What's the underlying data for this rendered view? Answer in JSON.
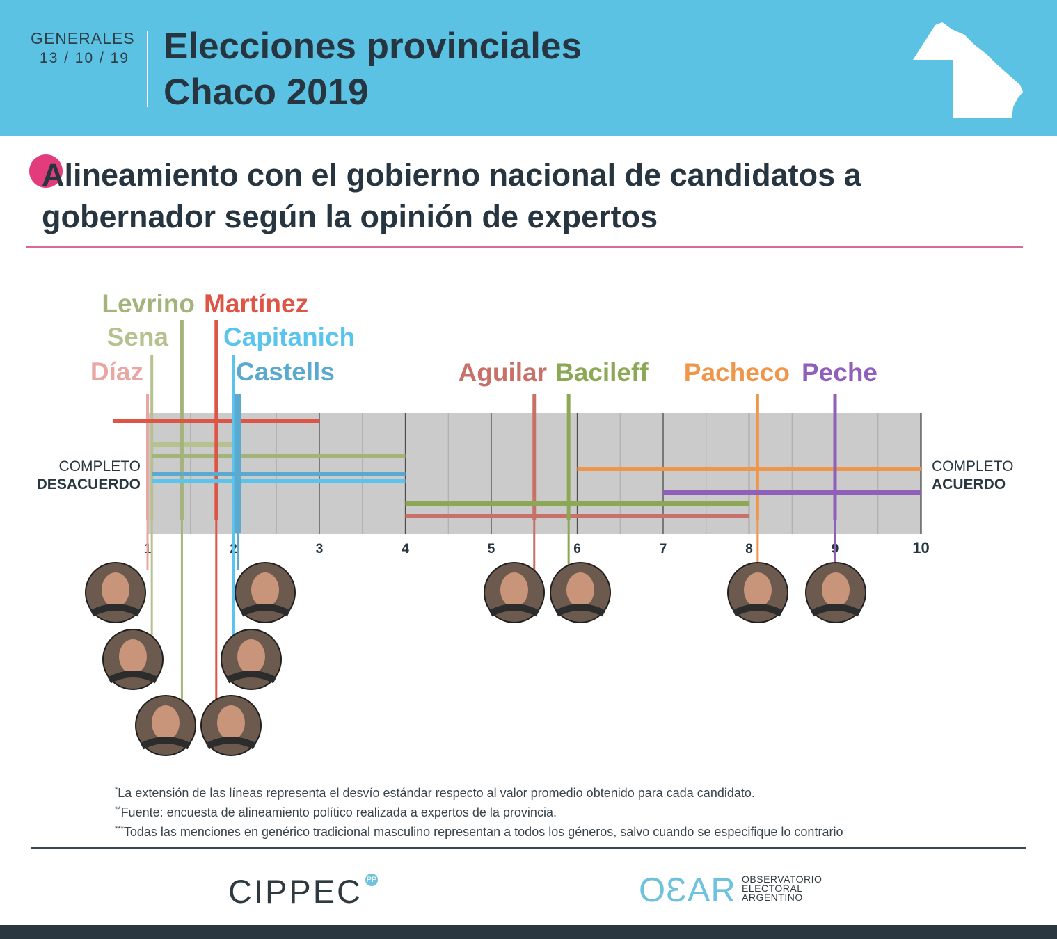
{
  "header": {
    "edition_label": "GENERALES",
    "edition_date": "13 / 10 / 19",
    "title_line1": "Elecciones provinciales",
    "title_line2": "Chaco 2019",
    "brand_color": "#5bc2e3"
  },
  "main_title": {
    "text": "Alineamiento con el gobierno nacional de candidatos a gobernador según la opinión de expertos",
    "accent_color": "#e23c7d"
  },
  "axis_labels": {
    "left_line1": "COMPLETO",
    "left_line2": "DESACUERDO",
    "right_line1": "COMPLETO",
    "right_line2": "ACUERDO"
  },
  "chart_data": {
    "type": "error-bar dot plot",
    "title": "Alineamiento con el gobierno nacional de candidatos a gobernador según la opinión de expertos",
    "x_range": [
      1,
      10
    ],
    "ticks": [
      "1",
      "2",
      "3",
      "4",
      "5",
      "6",
      "7",
      "8",
      "9",
      "10"
    ],
    "grid": true,
    "xlabel_left": "COMPLETO DESACUERDO",
    "xlabel_right": "COMPLETO ACUERDO",
    "series": [
      {
        "name": "Díaz",
        "color": "#e8a7a3",
        "mean": 1.0,
        "low": 1.0,
        "high": 1.0
      },
      {
        "name": "Sena",
        "color": "#b5c18f",
        "mean": 1.05,
        "low": 1.05,
        "high": 2.0
      },
      {
        "name": "Levrino",
        "color": "#a3b47a",
        "mean": 1.4,
        "low": 1.05,
        "high": 4.0
      },
      {
        "name": "Martínez",
        "color": "#dd5645",
        "mean": 1.8,
        "low": 0.6,
        "high": 3.0
      },
      {
        "name": "Capitanich",
        "color": "#5bc4ec",
        "mean": 2.0,
        "low": 1.05,
        "high": 4.0
      },
      {
        "name": "Castells",
        "color": "#5ba9ce",
        "mean": 2.05,
        "low": 1.05,
        "high": 4.0
      },
      {
        "name": "Aguilar",
        "color": "#c77168",
        "mean": 5.5,
        "low": 4.0,
        "high": 8.0
      },
      {
        "name": "Bacileff",
        "color": "#8ca855",
        "mean": 5.9,
        "low": 4.0,
        "high": 8.0
      },
      {
        "name": "Pacheco",
        "color": "#f0964a",
        "mean": 8.1,
        "low": 6.0,
        "high": 10.0
      },
      {
        "name": "Peche",
        "color": "#8f5fba",
        "mean": 9.0,
        "low": 7.0,
        "high": 10.0
      }
    ]
  },
  "notes": {
    "note1_mark": "*",
    "note1": "La extensión de las líneas representa el desvío estándar respecto al valor promedio obtenido para cada candidato.",
    "note2_mark": "**",
    "note2": "Fuente: encuesta de alineamiento político realizada a expertos de la provincia.",
    "note3_mark": "***",
    "note3": "Todas las menciones en genérico tradicional masculino representan a todos los géneros, salvo cuando se especifique lo contrario"
  },
  "footer": {
    "cippec": "CIPPEC",
    "cippec_badge": "PP",
    "oear": "OƐAR",
    "oear_line1": "OBSERVATORIO",
    "oear_line2": "ELECTORAL",
    "oear_line3": "ARGENTINO"
  }
}
